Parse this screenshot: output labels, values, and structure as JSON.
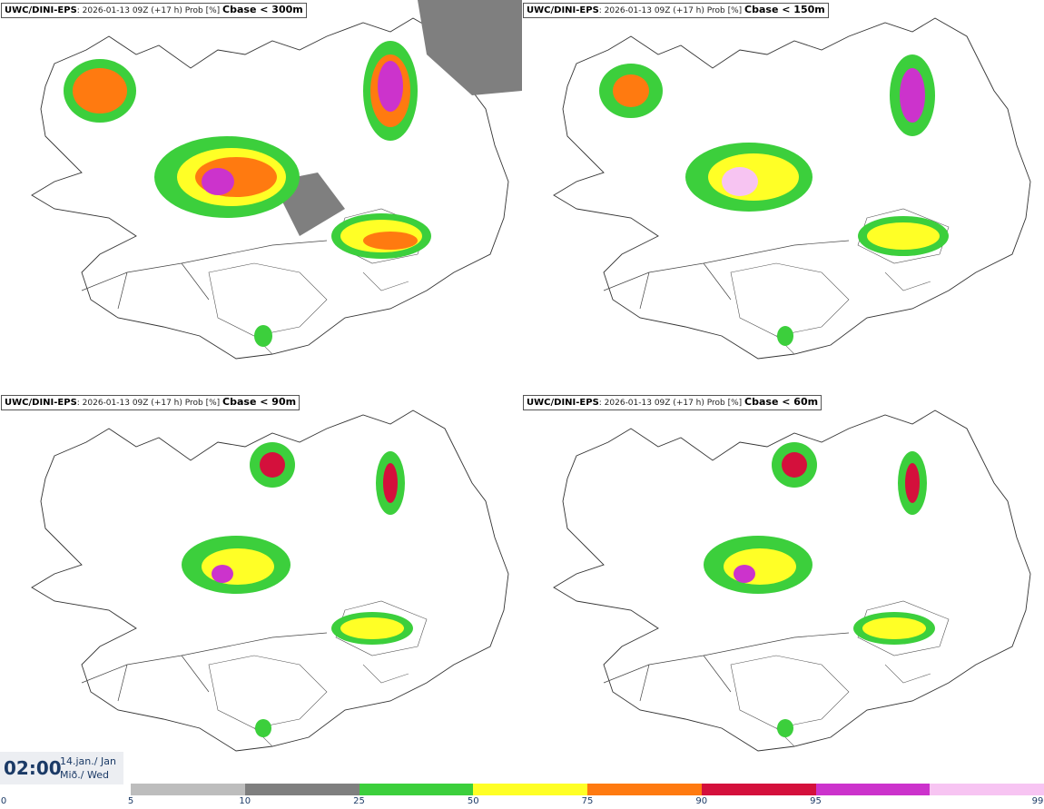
{
  "panels": [
    {
      "model": "UWC/DINI-EPS",
      "run": ": 2026-01-13 09Z (+17 h) Prob [%] ",
      "field": "Cbase < 300m"
    },
    {
      "model": "UWC/DINI-EPS",
      "run": ": 2026-01-13 09Z (+17 h) Prob [%] ",
      "field": "Cbase < 150m"
    },
    {
      "model": "UWC/DINI-EPS",
      "run": ": 2026-01-13 09Z (+17 h) Prob [%] ",
      "field": "Cbase < 90m"
    },
    {
      "model": "UWC/DINI-EPS",
      "run": ": 2026-01-13 09Z (+17 h) Prob [%] ",
      "field": "Cbase < 60m"
    }
  ],
  "valid_time": {
    "time": "02:00",
    "date_line1": "14.jan./ Jan",
    "date_line2": "Mið./ Wed"
  },
  "colorbar": {
    "ticks": [
      "0",
      "5",
      "10",
      "25",
      "50",
      "75",
      "90",
      "95",
      "99"
    ],
    "colors": [
      "#bdbdbd",
      "#7f7f7f",
      "#3ccf3c",
      "#ffff26",
      "#ff7a10",
      "#d4103c",
      "#cc33cc",
      "#f7c4f2"
    ]
  },
  "map_colors": {
    "land": "#ffffff",
    "outline": "#333333",
    "roads": "#444444"
  }
}
